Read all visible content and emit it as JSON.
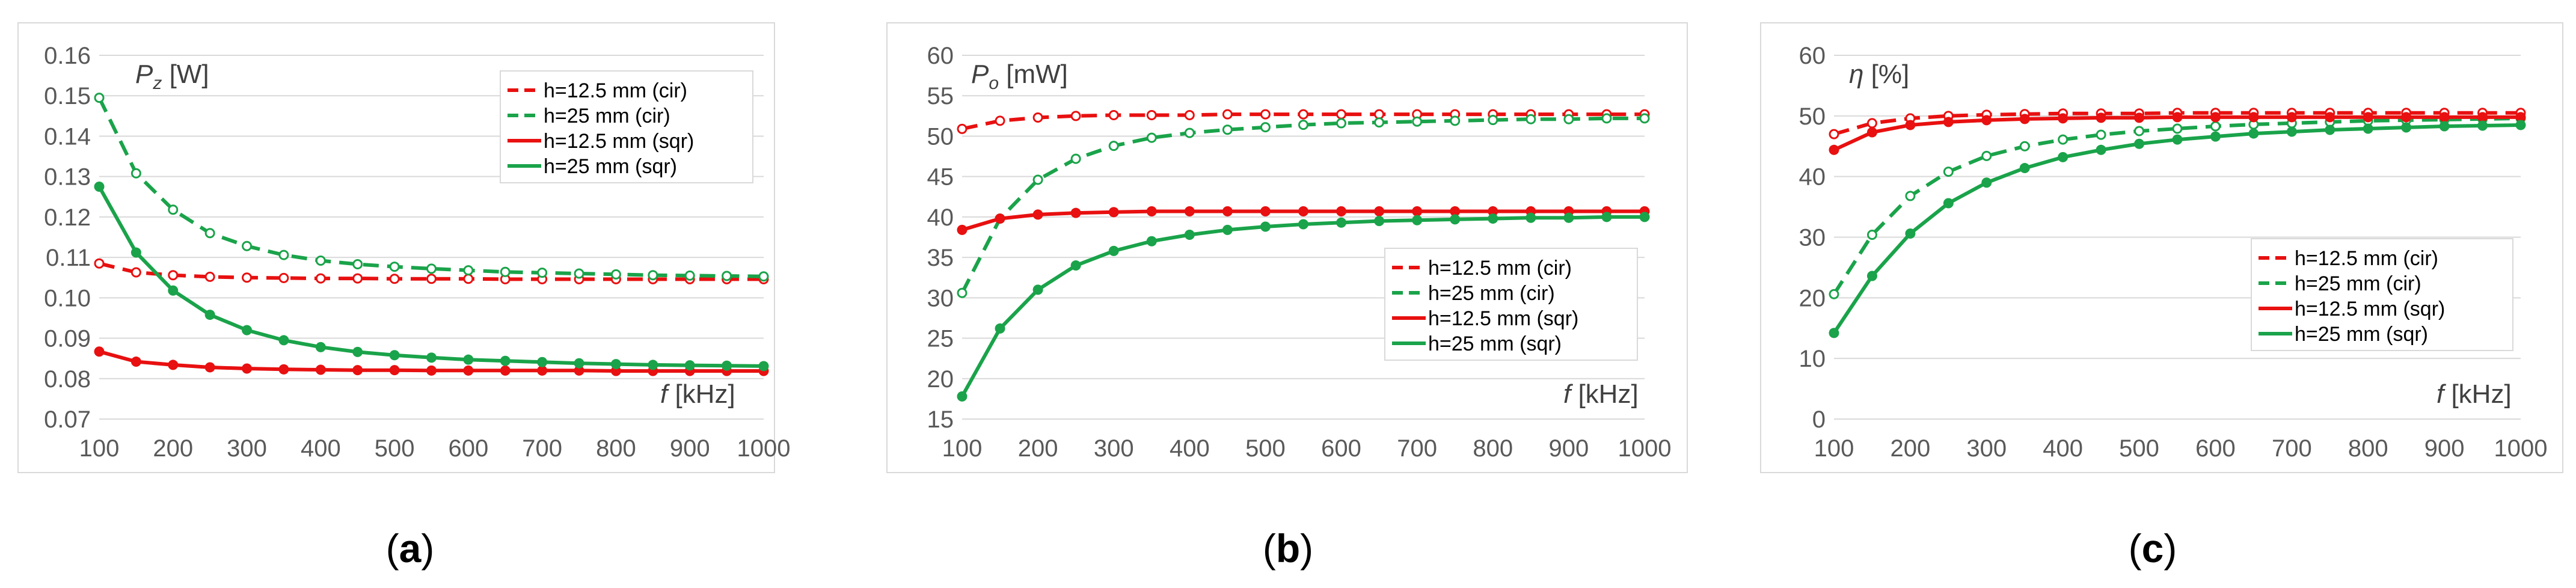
{
  "chart_data": [
    {
      "type": "line",
      "panel_label": "a",
      "ylabel_symbol": "P",
      "ylabel_sub": "z",
      "ylabel_unit": "[W]",
      "xlabel_symbol": "f",
      "xlabel_unit": "[kHz]",
      "ylim": [
        0.07,
        0.16
      ],
      "yticks": [
        "0.07",
        "0.08",
        "0.09",
        "0.10",
        "0.11",
        "0.12",
        "0.13",
        "0.14",
        "0.15",
        "0.16"
      ],
      "xlim": [
        100,
        1000
      ],
      "xticks": [
        "100",
        "200",
        "300",
        "400",
        "500",
        "600",
        "700",
        "800",
        "900",
        "1000"
      ],
      "legend_position": "top-right",
      "x": [
        100,
        150,
        200,
        250,
        300,
        350,
        400,
        450,
        500,
        550,
        600,
        650,
        700,
        750,
        800,
        850,
        900,
        950,
        1000
      ],
      "series": [
        {
          "name": "h=12.5 mm (cir)",
          "color": "#e81010",
          "dash": true,
          "marker": "open",
          "values": [
            0.1085,
            0.1063,
            0.1056,
            0.1052,
            0.105,
            0.1049,
            0.1048,
            0.1048,
            0.1047,
            0.1047,
            0.1047,
            0.1046,
            0.1046,
            0.1046,
            0.1046,
            0.1046,
            0.1046,
            0.1046,
            0.1046
          ]
        },
        {
          "name": "h=25 mm (cir)",
          "color": "#1aa34a",
          "dash": true,
          "marker": "open",
          "values": [
            0.1495,
            0.1308,
            0.1218,
            0.116,
            0.1128,
            0.1106,
            0.1092,
            0.1083,
            0.1077,
            0.1072,
            0.1068,
            0.1064,
            0.1062,
            0.106,
            0.1058,
            0.1056,
            0.1055,
            0.1054,
            0.1053
          ]
        },
        {
          "name": "h=12.5 mm (sqr)",
          "color": "#e81010",
          "dash": false,
          "marker": "filled",
          "values": [
            0.0867,
            0.0842,
            0.0834,
            0.0828,
            0.0825,
            0.0823,
            0.0822,
            0.0821,
            0.0821,
            0.082,
            0.082,
            0.082,
            0.082,
            0.082,
            0.0819,
            0.0819,
            0.0819,
            0.0819,
            0.0819
          ]
        },
        {
          "name": "h=25 mm (sqr)",
          "color": "#1aa34a",
          "dash": false,
          "marker": "filled",
          "values": [
            0.1275,
            0.1112,
            0.1018,
            0.0958,
            0.092,
            0.0895,
            0.0878,
            0.0866,
            0.0858,
            0.0852,
            0.0847,
            0.0844,
            0.0841,
            0.0838,
            0.0836,
            0.0834,
            0.0833,
            0.0832,
            0.0831
          ]
        }
      ]
    },
    {
      "type": "line",
      "panel_label": "b",
      "ylabel_symbol": "P",
      "ylabel_sub": "o",
      "ylabel_unit": "[mW]",
      "xlabel_symbol": "f",
      "xlabel_unit": "[kHz]",
      "ylim": [
        15,
        60
      ],
      "yticks": [
        "15",
        "20",
        "25",
        "30",
        "35",
        "40",
        "45",
        "50",
        "55",
        "60"
      ],
      "xlim": [
        100,
        1000
      ],
      "xticks": [
        "100",
        "200",
        "300",
        "400",
        "500",
        "600",
        "700",
        "800",
        "900",
        "1000"
      ],
      "legend_position": "center-right",
      "x": [
        100,
        150,
        200,
        250,
        300,
        350,
        400,
        450,
        500,
        550,
        600,
        650,
        700,
        750,
        800,
        850,
        900,
        950,
        1000
      ],
      "series": [
        {
          "name": "h=12.5 mm (cir)",
          "color": "#e81010",
          "dash": true,
          "marker": "open",
          "values": [
            50.9,
            51.9,
            52.3,
            52.5,
            52.6,
            52.6,
            52.6,
            52.7,
            52.7,
            52.7,
            52.7,
            52.7,
            52.7,
            52.7,
            52.7,
            52.7,
            52.7,
            52.7,
            52.7
          ]
        },
        {
          "name": "h=25 mm (cir)",
          "color": "#1aa34a",
          "dash": true,
          "marker": "open",
          "values": [
            30.6,
            39.8,
            44.6,
            47.2,
            48.8,
            49.8,
            50.4,
            50.8,
            51.1,
            51.4,
            51.6,
            51.7,
            51.8,
            51.9,
            52.0,
            52.1,
            52.1,
            52.2,
            52.2
          ]
        },
        {
          "name": "h=12.5 mm (sqr)",
          "color": "#e81010",
          "dash": false,
          "marker": "filled",
          "values": [
            38.4,
            39.8,
            40.3,
            40.5,
            40.6,
            40.7,
            40.7,
            40.7,
            40.7,
            40.7,
            40.7,
            40.7,
            40.7,
            40.7,
            40.7,
            40.7,
            40.7,
            40.7,
            40.7
          ]
        },
        {
          "name": "h=25 mm (sqr)",
          "color": "#1aa34a",
          "dash": false,
          "marker": "filled",
          "values": [
            17.8,
            26.2,
            31.0,
            34.0,
            35.8,
            37.0,
            37.8,
            38.4,
            38.8,
            39.1,
            39.3,
            39.5,
            39.6,
            39.7,
            39.8,
            39.9,
            39.9,
            40.0,
            40.0
          ]
        }
      ]
    },
    {
      "type": "line",
      "panel_label": "c",
      "ylabel_symbol": "η",
      "ylabel_sub": "",
      "ylabel_unit": "[%]",
      "xlabel_symbol": "f",
      "xlabel_unit": "[kHz]",
      "ylim": [
        0,
        60
      ],
      "yticks": [
        "0",
        "10",
        "20",
        "30",
        "40",
        "50",
        "60"
      ],
      "xlim": [
        100,
        1000
      ],
      "xticks": [
        "100",
        "200",
        "300",
        "400",
        "500",
        "600",
        "700",
        "800",
        "900",
        "1000"
      ],
      "legend_position": "center-right",
      "x": [
        100,
        150,
        200,
        250,
        300,
        350,
        400,
        450,
        500,
        550,
        600,
        650,
        700,
        750,
        800,
        850,
        900,
        950,
        1000
      ],
      "series": [
        {
          "name": "h=12.5 mm (cir)",
          "color": "#e81010",
          "dash": true,
          "marker": "open",
          "values": [
            47.0,
            48.8,
            49.6,
            50.0,
            50.2,
            50.3,
            50.4,
            50.4,
            50.4,
            50.5,
            50.5,
            50.5,
            50.5,
            50.5,
            50.5,
            50.5,
            50.5,
            50.5,
            50.5
          ]
        },
        {
          "name": "h=25 mm (cir)",
          "color": "#1aa34a",
          "dash": true,
          "marker": "open",
          "values": [
            20.6,
            30.4,
            36.8,
            40.8,
            43.4,
            45.0,
            46.1,
            46.9,
            47.5,
            47.9,
            48.3,
            48.6,
            48.8,
            49.0,
            49.2,
            49.3,
            49.4,
            49.5,
            49.6
          ]
        },
        {
          "name": "h=12.5 mm (sqr)",
          "color": "#e81010",
          "dash": false,
          "marker": "filled",
          "values": [
            44.4,
            47.3,
            48.5,
            49.0,
            49.3,
            49.5,
            49.6,
            49.7,
            49.7,
            49.8,
            49.8,
            49.8,
            49.8,
            49.8,
            49.8,
            49.8,
            49.8,
            49.8,
            49.8
          ]
        },
        {
          "name": "h=25 mm (sqr)",
          "color": "#1aa34a",
          "dash": false,
          "marker": "filled",
          "values": [
            14.2,
            23.6,
            30.6,
            35.6,
            39.0,
            41.4,
            43.2,
            44.4,
            45.4,
            46.1,
            46.6,
            47.1,
            47.4,
            47.7,
            47.9,
            48.1,
            48.3,
            48.4,
            48.5
          ]
        }
      ]
    }
  ]
}
